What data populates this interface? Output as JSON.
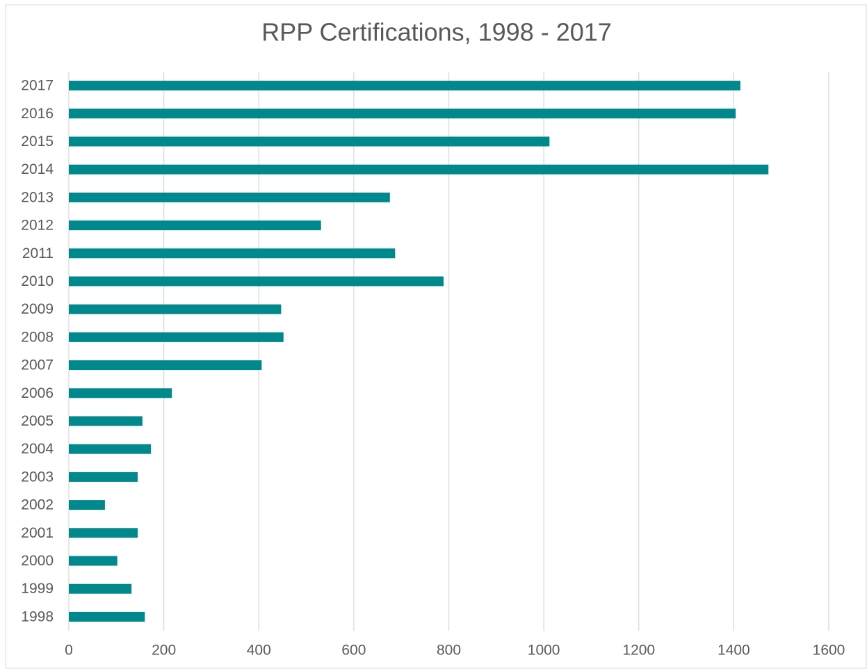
{
  "chart_data": {
    "type": "bar",
    "orientation": "horizontal",
    "title": "RPP Certifications, 1998 - 2017",
    "categories": [
      "1998",
      "1999",
      "2000",
      "2001",
      "2002",
      "2003",
      "2004",
      "2005",
      "2006",
      "2007",
      "2008",
      "2009",
      "2010",
      "2011",
      "2012",
      "2013",
      "2014",
      "2015",
      "2016",
      "2017"
    ],
    "values": [
      160,
      132,
      102,
      145,
      76,
      145,
      173,
      155,
      217,
      406,
      452,
      447,
      789,
      687,
      531,
      676,
      1473,
      1012,
      1404,
      1414
    ],
    "color": "#00898c",
    "xlim": [
      0,
      1600
    ],
    "xticks": [
      0,
      200,
      400,
      600,
      800,
      1000,
      1200,
      1400,
      1600
    ],
    "grid": true
  }
}
